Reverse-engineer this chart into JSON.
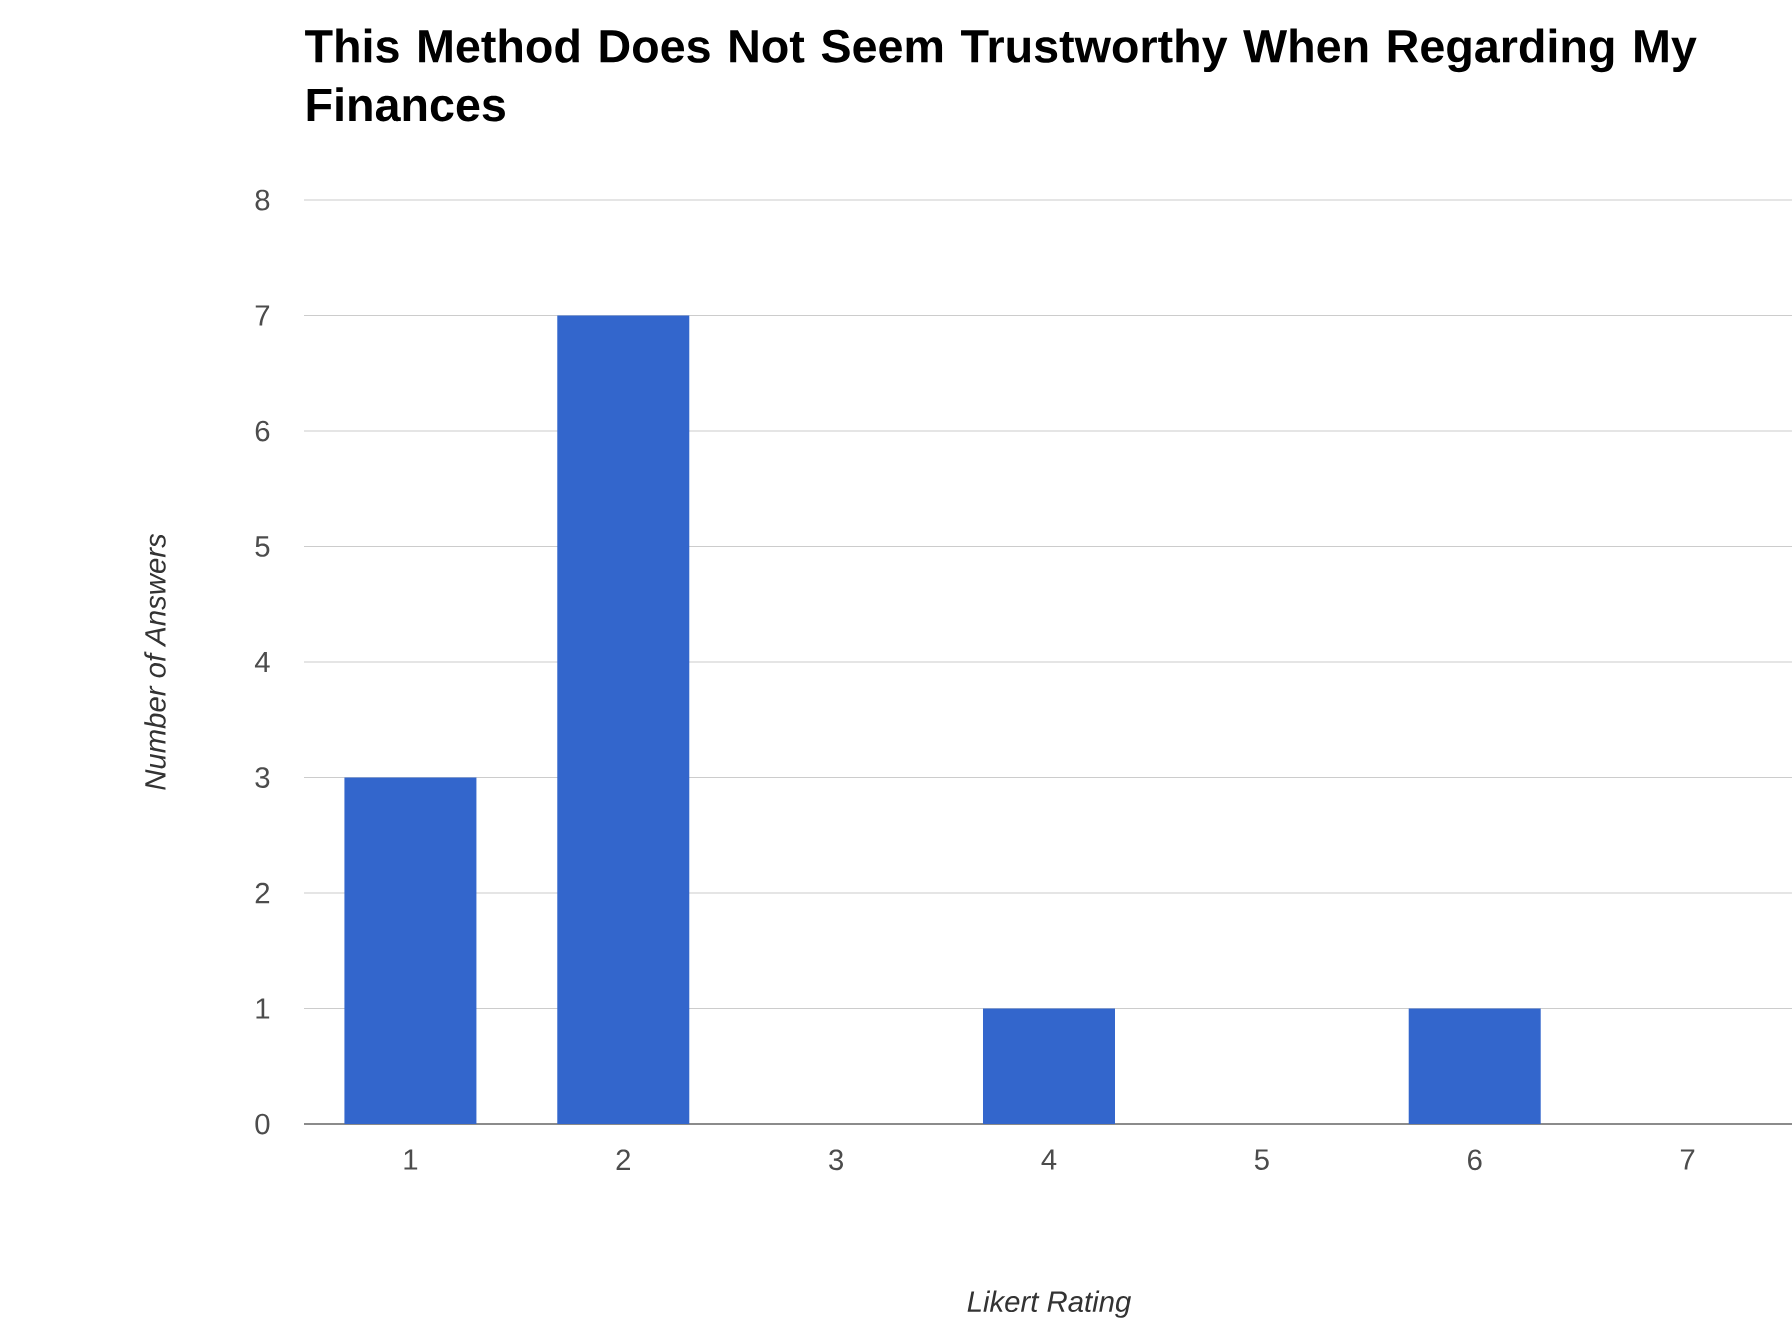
{
  "chart_data": {
    "type": "bar",
    "title": "This Method Does Not Seem Trustworthy When Regarding My Finances",
    "xlabel": "Likert Rating",
    "ylabel": "Number of Answers",
    "categories": [
      "1",
      "2",
      "3",
      "4",
      "5",
      "6",
      "7"
    ],
    "values": [
      3,
      7,
      0,
      1,
      0,
      1,
      0
    ],
    "color": "#3366cc",
    "ylim": [
      0,
      8
    ],
    "yticks": [
      0,
      1,
      2,
      3,
      4,
      5,
      6,
      7,
      8
    ],
    "grid": "y"
  }
}
